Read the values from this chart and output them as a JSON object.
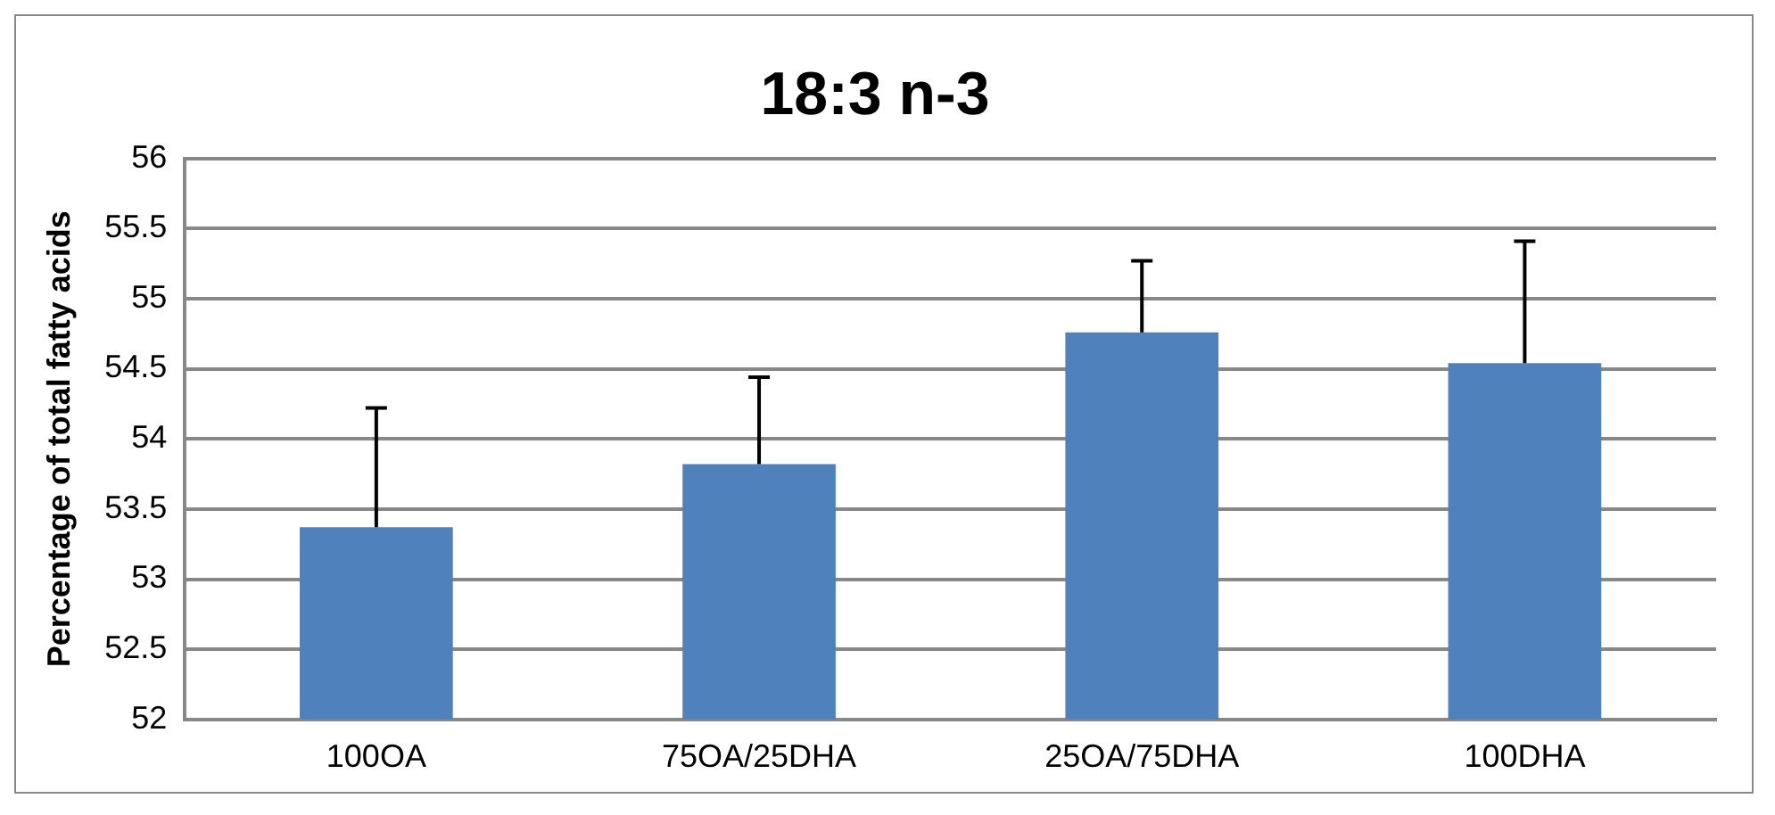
{
  "chart_data": {
    "type": "bar",
    "title": "18:3 n-3",
    "ylabel": "Percentage of total fatty acids",
    "categories": [
      "100OA",
      "75OA/25DHA",
      "25OA/75DHA",
      "100DHA"
    ],
    "values": [
      53.37,
      53.82,
      54.76,
      54.54
    ],
    "errors": [
      [
        53.37,
        54.22
      ],
      [
        53.82,
        54.44
      ],
      [
        54.76,
        55.27
      ],
      [
        54.54,
        55.41
      ]
    ],
    "color": "#4f81bd",
    "ylim": [
      52,
      56
    ],
    "yticks": [
      52,
      52.5,
      53,
      53.5,
      54,
      54.5,
      55,
      55.5,
      56
    ],
    "grid": "y",
    "legend": false
  }
}
